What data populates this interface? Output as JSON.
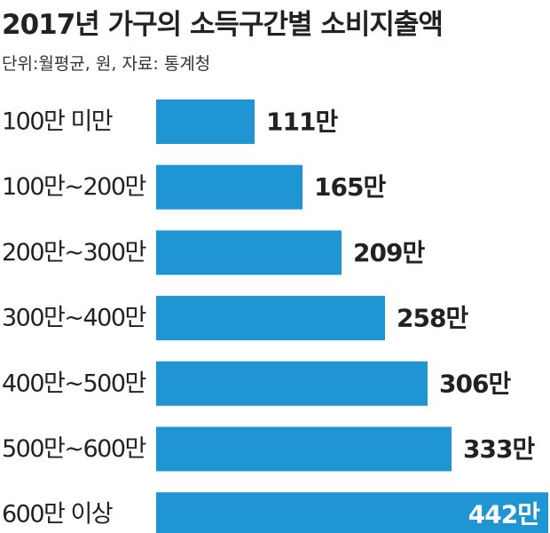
{
  "title": "2017년 가구의 소득구간별 소비지출액",
  "subtitle": "단위:월평균, 원, 자료: 통계청",
  "colors": {
    "bar": "#1f96d3",
    "value_text": "#222222",
    "value_text_inside": "#ffffff",
    "category_text": "#222222"
  },
  "chart_data": {
    "type": "bar",
    "orientation": "horizontal",
    "title": "2017년 가구의 소득구간별 소비지출액",
    "subtitle": "단위:월평균, 원, 자료: 통계청",
    "categories": [
      "100만 미만",
      "100만~200만",
      "200만~300만",
      "300만~400만",
      "400만~500만",
      "500만~600만",
      "600만 이상"
    ],
    "values": [
      111,
      165,
      209,
      258,
      306,
      333,
      442
    ],
    "value_labels": [
      "111만",
      "165만",
      "209만",
      "258만",
      "306만",
      "333만",
      "442만"
    ],
    "unit": "만 원",
    "xlim": [
      0,
      442
    ],
    "grid": false,
    "legend": "none"
  }
}
